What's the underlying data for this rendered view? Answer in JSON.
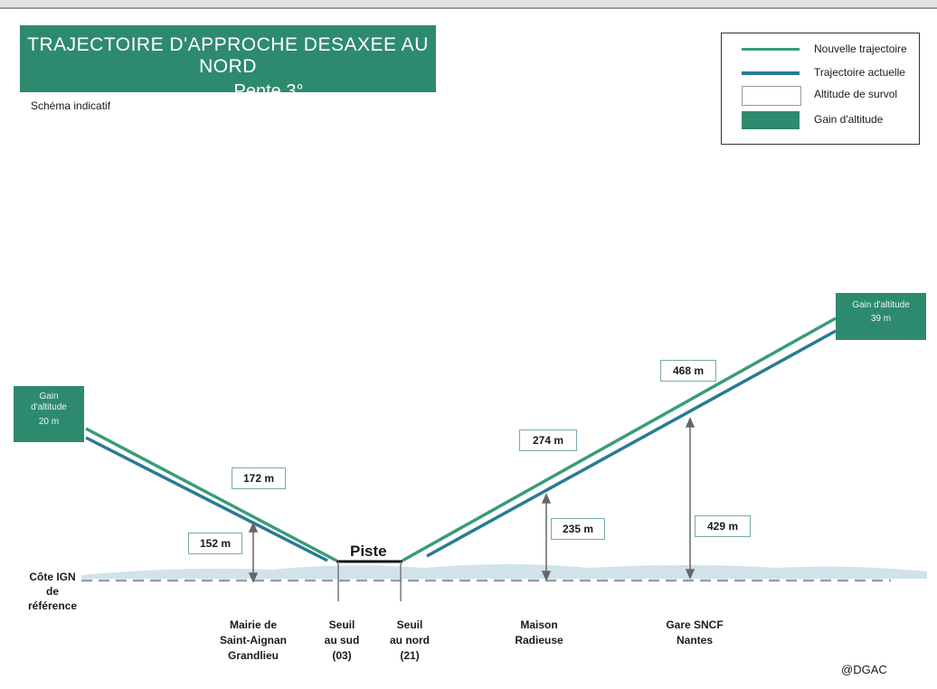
{
  "title": {
    "line1": "TRAJECTOIRE D'APPROCHE DESAXEE AU NORD",
    "line2": "Pente 3°"
  },
  "subtitle": "Schéma indicatif",
  "legend": {
    "new_trajectory": "Nouvelle trajectoire",
    "current_trajectory": "Trajectoire actuelle",
    "overflight_altitude": "Altitude de survol",
    "altitude_gain": "Gain d'altitude"
  },
  "gain_left": {
    "label_a": "Gain",
    "label_b": "d'altitude",
    "value": "20 m"
  },
  "gain_right": {
    "label": "Gain d'altitude",
    "value": "39 m"
  },
  "altitudes": {
    "left_new": "172 m",
    "left_current": "152 m",
    "maison_new": "274 m",
    "maison_current": "235 m",
    "gare_new": "468 m",
    "gare_current": "429 m"
  },
  "runway_label": "Piste",
  "reference": {
    "line1": "Côte IGN",
    "line2": "de",
    "line3": "référence"
  },
  "locations": {
    "mairie": [
      "Mairie de",
      "Saint-Aignan",
      "Grandlieu"
    ],
    "seuil_sud": [
      "Seuil",
      "au sud",
      "(03)"
    ],
    "seuil_nord": [
      "Seuil",
      "au nord",
      "(21)"
    ],
    "maison": [
      "Maison",
      "Radieuse"
    ],
    "gare": [
      "Gare SNCF",
      "Nantes"
    ]
  },
  "credit": "@DGAC",
  "colors": {
    "new_trajectory": "#3a9b7a",
    "current_trajectory": "#2a7a95",
    "gain_box": "#2e8a6e",
    "ground": "#c9dde6",
    "reference_line": "#9a9a9a"
  }
}
